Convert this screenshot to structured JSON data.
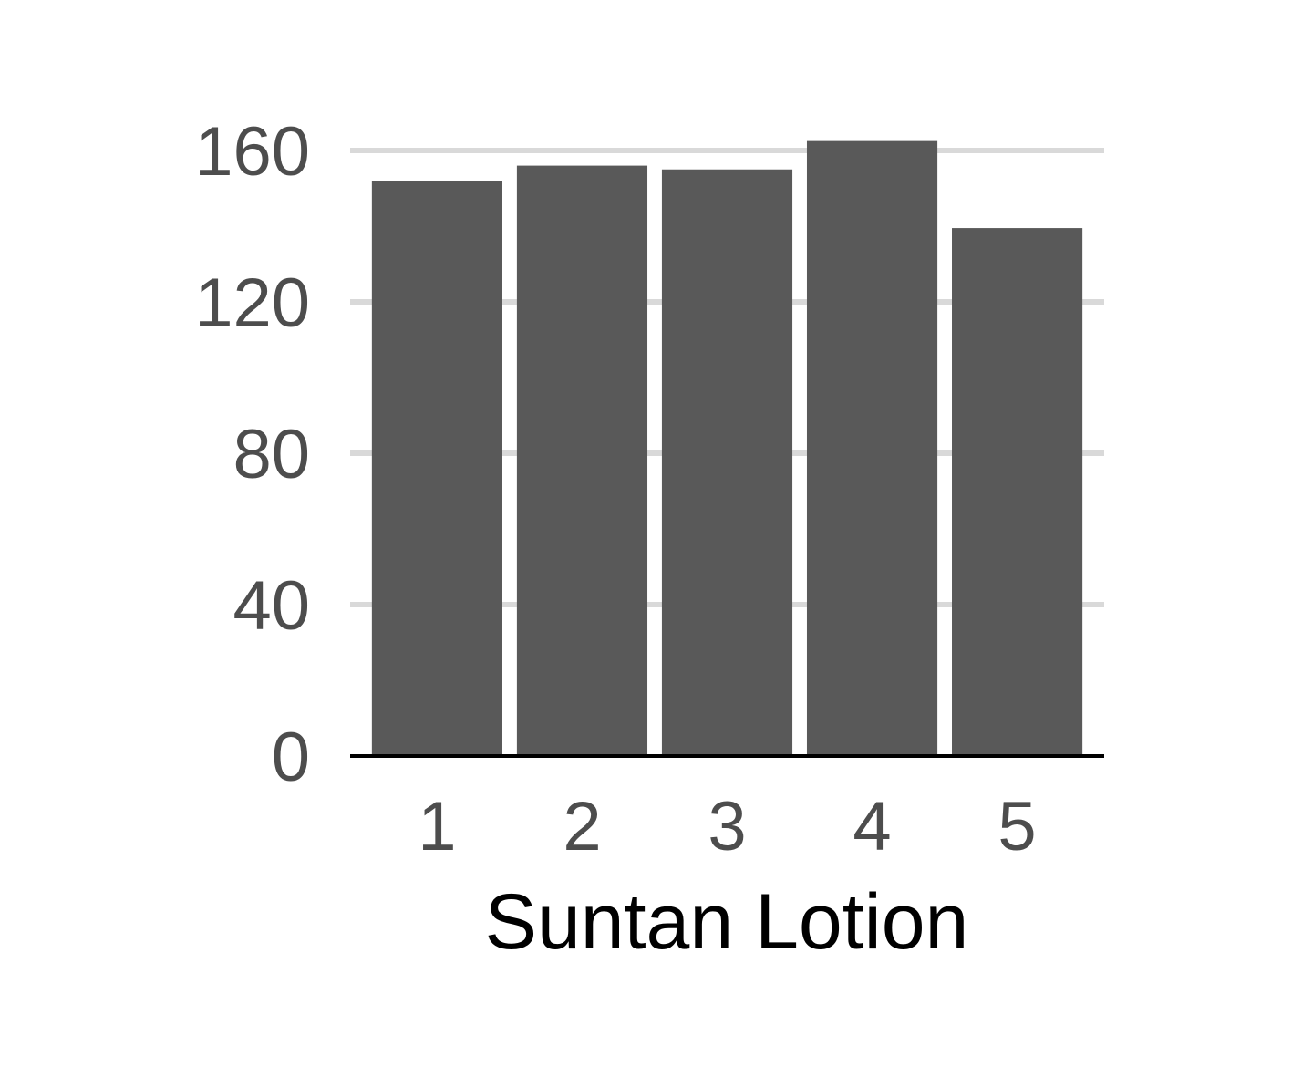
{
  "chart_data": {
    "type": "bar",
    "title": "",
    "xlabel": "Suntan Lotion",
    "ylabel": "",
    "categories": [
      "1",
      "2",
      "3",
      "4",
      "5"
    ],
    "values": [
      152,
      156,
      155,
      162.5,
      139.5
    ],
    "ylim": [
      0,
      160
    ],
    "yticks": [
      0,
      40,
      80,
      120,
      160
    ],
    "grid": "horizontal major",
    "legend": "none",
    "colors": {
      "bar": "#595959",
      "grid": "#d9d9d9",
      "axis": "#000000",
      "tick_text": "#4d4d4d"
    }
  }
}
